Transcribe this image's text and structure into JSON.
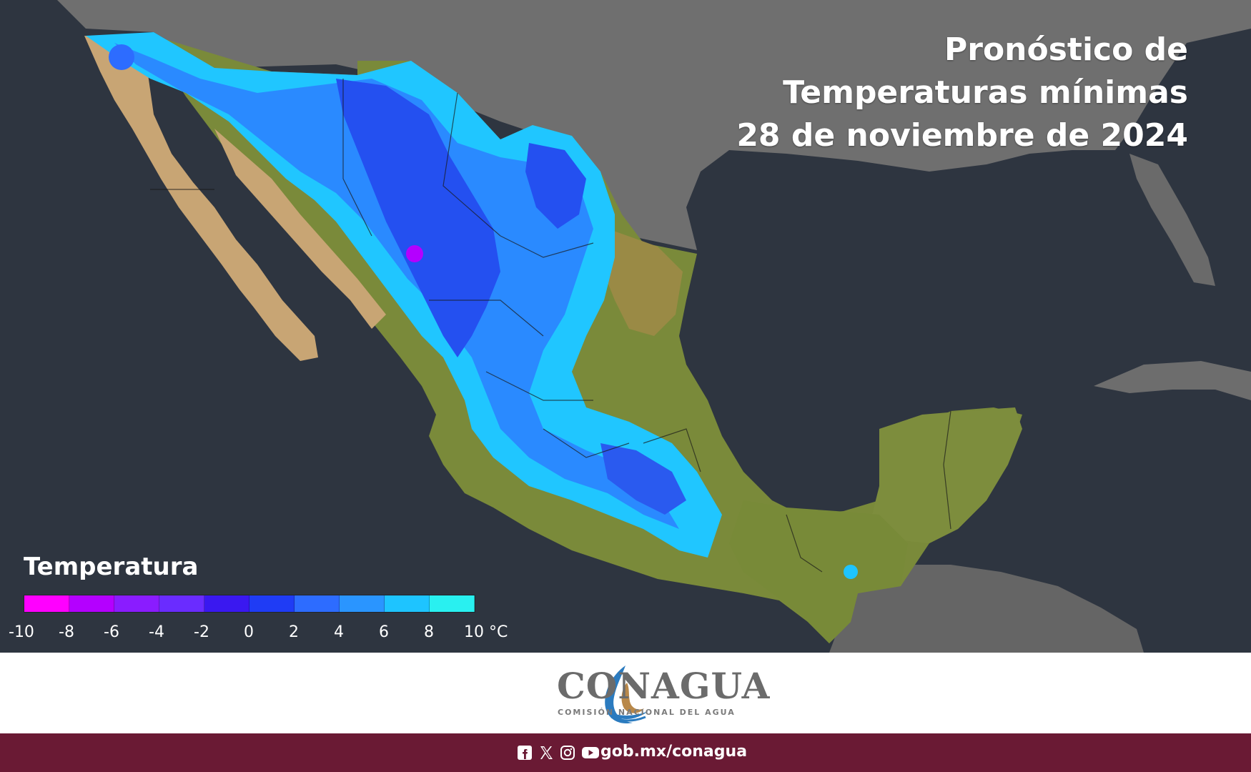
{
  "title": {
    "line1": "Pronóstico de",
    "line2": "Temperaturas mínimas",
    "line3": "28 de noviembre de 2024"
  },
  "legend": {
    "title": "Temperatura",
    "ticks": [
      "-10",
      "-8",
      "-6",
      "-4",
      "-2",
      "0",
      "2",
      "4",
      "6",
      "8",
      "10 °C"
    ],
    "colors": [
      "#ff00ff",
      "#b400ff",
      "#8a1cff",
      "#6a2cff",
      "#3a18f0",
      "#1f3cf5",
      "#2d6cff",
      "#2a95ff",
      "#1ec4ff",
      "#29f0f0"
    ]
  },
  "colors": {
    "ocean": "#2e3540",
    "land_us": "#6e6e6e",
    "land_dry": "#c8a574",
    "land_green": "#7a8a3a",
    "cold_light": "#1ec4ff",
    "cold_mid": "#2a95ff",
    "cold_dark": "#1f3cf5",
    "footer_bg": "#6a1a34"
  },
  "logo": {
    "name": "CONAGUA",
    "subtitle": "COMISIÓN NACIONAL DEL AGUA"
  },
  "footer": {
    "social_icons": [
      "facebook-icon",
      "x-icon",
      "instagram-icon",
      "youtube-icon"
    ],
    "url": "gob.mx/conagua"
  }
}
